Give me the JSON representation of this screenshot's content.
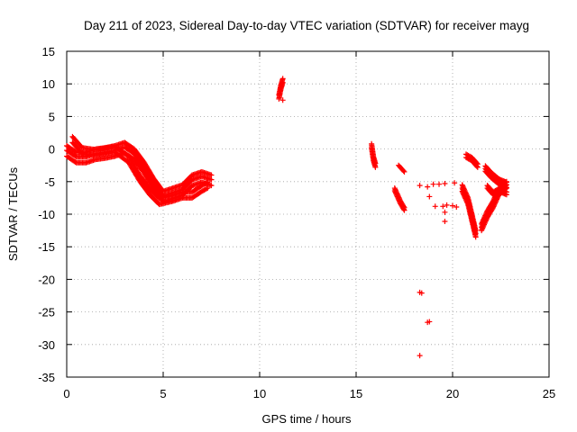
{
  "chart_data": {
    "type": "scatter",
    "title": "Day 211 of 2023, Sidereal Day-to-day VTEC variation (SDTVAR) for receiver mayg",
    "xlabel": "GPS time / hours",
    "ylabel": "SDTVAR / TECUs",
    "xlim": [
      0,
      25
    ],
    "ylim": [
      -35,
      15
    ],
    "xticks": [
      "0",
      "5",
      "10",
      "15",
      "20",
      "25"
    ],
    "yticks": [
      "15",
      "10",
      "5",
      "0",
      "-5",
      "-10",
      "-15",
      "-20",
      "-25",
      "-30",
      "-35"
    ],
    "grid": true,
    "marker": "+",
    "series_color": "#ff0000",
    "segments": [
      {
        "name": "arc-a",
        "points": [
          [
            0.0,
            -0.5
          ],
          [
            0.5,
            -1.5
          ],
          [
            1.0,
            -1.5
          ],
          [
            1.5,
            -1.0
          ],
          [
            2.0,
            -0.8
          ],
          [
            2.5,
            -0.5
          ],
          [
            3.0,
            0.0
          ],
          [
            3.5,
            -1.0
          ],
          [
            4.0,
            -3.0
          ],
          [
            4.5,
            -5.5
          ],
          [
            5.0,
            -7.5
          ],
          [
            5.5,
            -7.0
          ],
          [
            6.0,
            -6.5
          ],
          [
            6.5,
            -5.0
          ],
          [
            7.0,
            -4.5
          ],
          [
            7.5,
            -5.0
          ]
        ],
        "offsets": [
          -0.6,
          0.3,
          1.0
        ]
      },
      {
        "name": "arc-b",
        "points": [
          [
            0.3,
            1.5
          ],
          [
            0.8,
            -0.2
          ],
          [
            1.5,
            -0.5
          ],
          [
            2.5,
            0.0
          ],
          [
            3.2,
            -1.5
          ],
          [
            3.8,
            -4.5
          ],
          [
            4.3,
            -6.5
          ],
          [
            4.8,
            -8.0
          ],
          [
            5.5,
            -7.5
          ],
          [
            6.0,
            -7.0
          ],
          [
            6.5,
            -7.0
          ],
          [
            7.0,
            -6.0
          ],
          [
            7.3,
            -5.5
          ]
        ],
        "offsets": [
          -0.5,
          0.4
        ]
      },
      {
        "name": "arc-c",
        "points": [
          [
            11.0,
            8.0
          ],
          [
            11.1,
            9.5
          ],
          [
            11.2,
            10.5
          ]
        ],
        "offsets": [
          -0.3,
          0.3
        ]
      },
      {
        "name": "arc-d",
        "points": [
          [
            15.8,
            0.5
          ],
          [
            15.9,
            -1.5
          ],
          [
            16.0,
            -2.5
          ]
        ],
        "offsets": [
          -0.3,
          0.3
        ]
      },
      {
        "name": "arc-e",
        "points": [
          [
            17.2,
            -2.5
          ],
          [
            17.5,
            -3.5
          ]
        ],
        "offsets": [
          0.0
        ]
      },
      {
        "name": "arc-f",
        "points": [
          [
            17.0,
            -6.0
          ],
          [
            17.3,
            -8.0
          ],
          [
            17.5,
            -9.0
          ]
        ],
        "offsets": [
          0.0,
          -0.4
        ]
      },
      {
        "name": "arc-g",
        "points": [
          [
            20.7,
            -1.0
          ],
          [
            21.0,
            -1.5
          ],
          [
            21.3,
            -2.5
          ]
        ],
        "offsets": [
          -0.3,
          0.2
        ]
      },
      {
        "name": "arc-h",
        "points": [
          [
            20.5,
            -6.0
          ],
          [
            20.8,
            -8.0
          ],
          [
            21.0,
            -10.5
          ],
          [
            21.2,
            -13.0
          ]
        ],
        "offsets": [
          -0.5,
          0.0,
          0.5
        ]
      },
      {
        "name": "arc-i",
        "points": [
          [
            21.5,
            -12.0
          ],
          [
            21.8,
            -10.0
          ],
          [
            22.1,
            -8.5
          ],
          [
            22.4,
            -6.5
          ],
          [
            22.8,
            -5.5
          ]
        ],
        "offsets": [
          -0.5,
          0.0,
          0.5
        ]
      },
      {
        "name": "arc-j",
        "points": [
          [
            21.7,
            -3.0
          ],
          [
            22.0,
            -4.0
          ],
          [
            22.4,
            -5.0
          ],
          [
            22.8,
            -5.5
          ]
        ],
        "offsets": [
          -0.4,
          0.0,
          0.4
        ]
      },
      {
        "name": "arc-k",
        "points": [
          [
            21.8,
            -6.0
          ],
          [
            22.1,
            -7.0
          ],
          [
            22.4,
            -6.5
          ],
          [
            22.8,
            -7.0
          ]
        ],
        "offsets": [
          0.0,
          0.4
        ]
      }
    ],
    "isolated_points": [
      [
        11.2,
        7.5
      ],
      [
        18.3,
        -5.6
      ],
      [
        18.7,
        -5.8
      ],
      [
        18.8,
        -7.3
      ],
      [
        19.0,
        -5.4
      ],
      [
        19.3,
        -5.4
      ],
      [
        19.6,
        -5.3
      ],
      [
        20.1,
        -5.2
      ],
      [
        19.1,
        -8.8
      ],
      [
        19.5,
        -8.8
      ],
      [
        19.7,
        -8.6
      ],
      [
        20.0,
        -8.7
      ],
      [
        20.2,
        -8.9
      ],
      [
        19.6,
        -9.7
      ],
      [
        19.6,
        -11.1
      ],
      [
        18.3,
        -22.0
      ],
      [
        18.4,
        -22.1
      ],
      [
        18.7,
        -26.6
      ],
      [
        18.8,
        -26.5
      ],
      [
        18.3,
        -31.7
      ]
    ]
  }
}
